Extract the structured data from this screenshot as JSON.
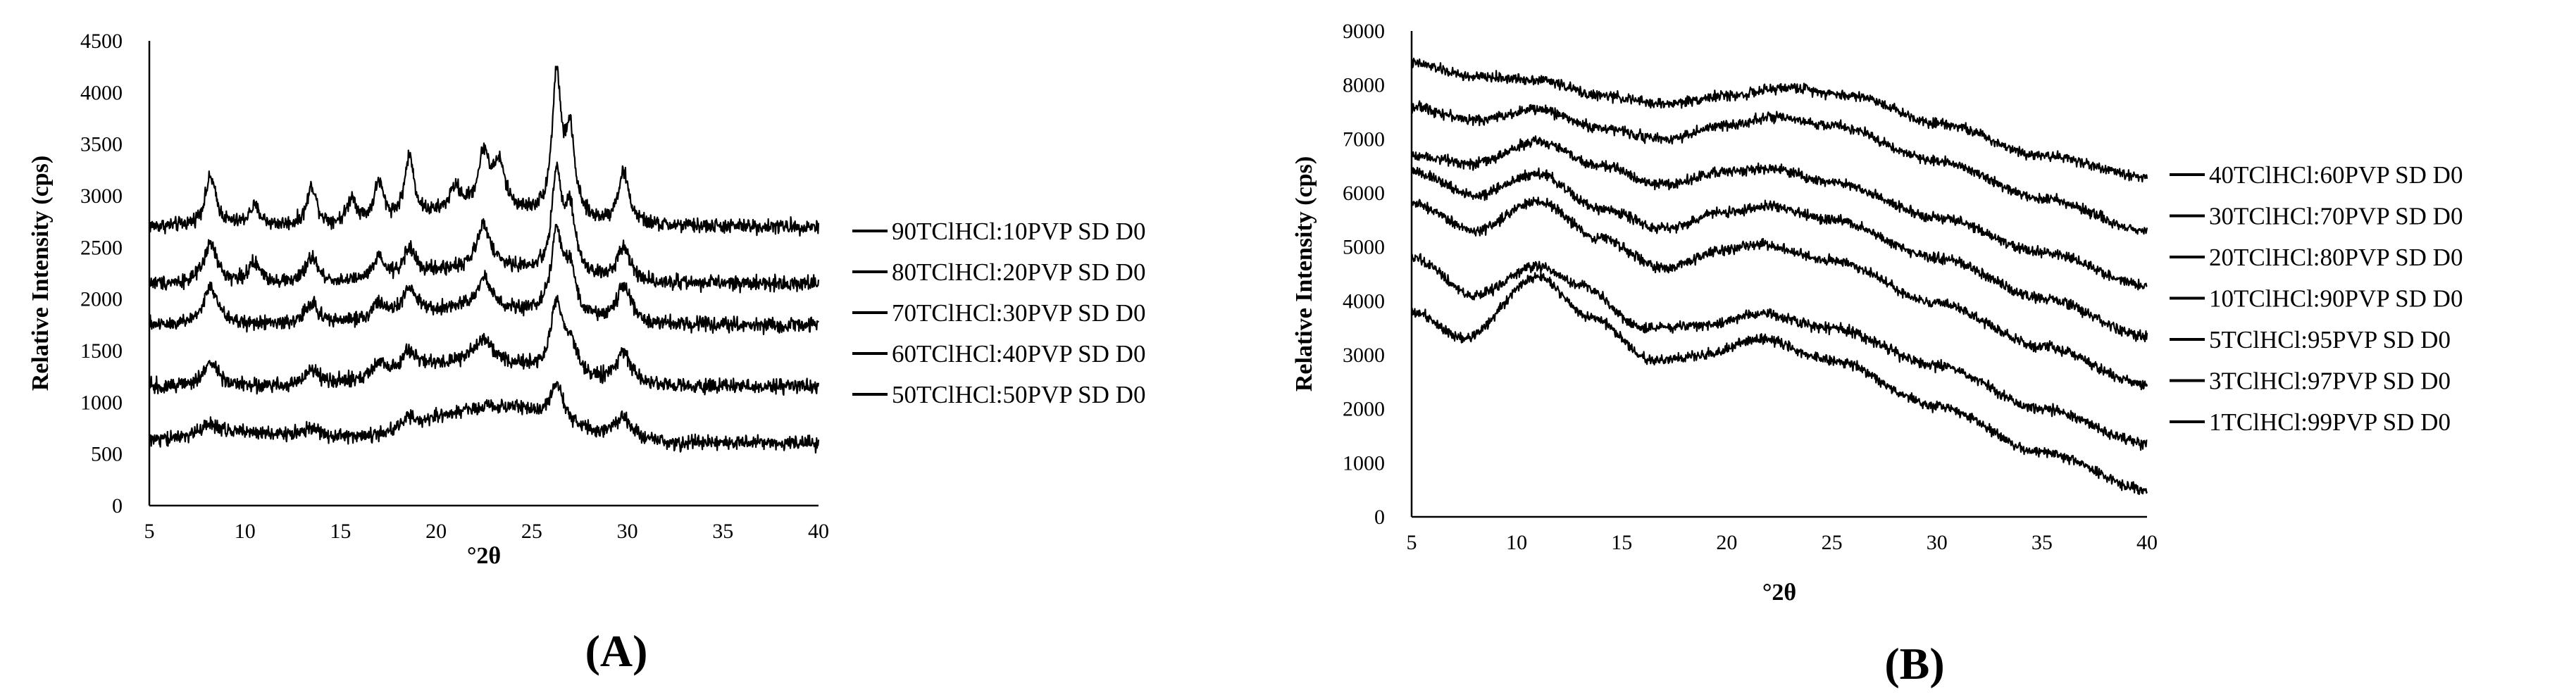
{
  "chart_data": [
    {
      "type": "line",
      "panel_label": "(A)",
      "xlabel": "°2θ",
      "ylabel": "Relative Intensity (cps)",
      "xlim": [
        5,
        40
      ],
      "ylim": [
        0,
        4500
      ],
      "x_ticks": [
        "5",
        "10",
        "15",
        "20",
        "25",
        "30",
        "35",
        "40"
      ],
      "y_ticks": [
        "0",
        "500",
        "1000",
        "1500",
        "2000",
        "2500",
        "3000",
        "3500",
        "4000",
        "4500"
      ],
      "grid": false,
      "legend_position": "right",
      "series": [
        {
          "name": "90TClHCl:10PVP SD D0",
          "baseline": 2700,
          "peaks": [
            [
              8.2,
              470,
              0.35
            ],
            [
              10.5,
              180,
              0.35
            ],
            [
              13.5,
              380,
              0.3
            ],
            [
              15.6,
              250,
              0.3
            ],
            [
              17.0,
              380,
              0.3
            ],
            [
              18.6,
              600,
              0.3
            ],
            [
              21.0,
              220,
              0.35
            ],
            [
              22.5,
              530,
              0.35
            ],
            [
              23.3,
              420,
              0.35
            ],
            [
              26.3,
              1350,
              0.28
            ],
            [
              27.0,
              800,
              0.3
            ],
            [
              29.8,
              500,
              0.35
            ]
          ],
          "halo": [
            [
              22.5,
              150,
              3.0
            ]
          ]
        },
        {
          "name": "80TClHCl:20PVP SD D0",
          "baseline": 2150,
          "peaks": [
            [
              8.2,
              380,
              0.4
            ],
            [
              10.5,
              180,
              0.4
            ],
            [
              13.5,
              250,
              0.35
            ],
            [
              17.0,
              200,
              0.35
            ],
            [
              18.6,
              270,
              0.35
            ],
            [
              22.5,
              420,
              0.4
            ],
            [
              26.3,
              950,
              0.3
            ],
            [
              27.0,
              600,
              0.35
            ],
            [
              29.8,
              350,
              0.4
            ]
          ],
          "halo": [
            [
              22.5,
              150,
              3.2
            ]
          ]
        },
        {
          "name": "70TClHCl:30PVP SD D0",
          "baseline": 1750,
          "peaks": [
            [
              8.2,
              360,
              0.45
            ],
            [
              13.5,
              200,
              0.4
            ],
            [
              17.0,
              150,
              0.4
            ],
            [
              18.6,
              250,
              0.4
            ],
            [
              22.5,
              300,
              0.45
            ],
            [
              26.3,
              800,
              0.35
            ],
            [
              27.0,
              450,
              0.35
            ],
            [
              29.8,
              350,
              0.45
            ]
          ],
          "halo": [
            [
              22.0,
              150,
              3.5
            ]
          ]
        },
        {
          "name": "60TClHCl:40PVP SD D0",
          "baseline": 1150,
          "peaks": [
            [
              8.2,
              220,
              0.5
            ],
            [
              13.5,
              150,
              0.45
            ],
            [
              17.0,
              120,
              0.45
            ],
            [
              18.6,
              180,
              0.45
            ],
            [
              22.5,
              200,
              0.5
            ],
            [
              26.3,
              650,
              0.35
            ],
            [
              27.0,
              300,
              0.4
            ],
            [
              29.8,
              300,
              0.5
            ]
          ],
          "halo": [
            [
              22.0,
              250,
              3.5
            ]
          ]
        },
        {
          "name": "50TClHCl:50PVP SD D0",
          "baseline": 600,
          "peaks": [
            [
              8.2,
              100,
              0.6
            ],
            [
              13.5,
              100,
              0.5
            ],
            [
              18.6,
              100,
              0.5
            ],
            [
              26.3,
              350,
              0.4
            ],
            [
              29.8,
              200,
              0.5
            ]
          ],
          "halo": [
            [
              23.0,
              350,
              3.5
            ],
            [
              10.0,
              100,
              3.0
            ]
          ]
        }
      ]
    },
    {
      "type": "line",
      "panel_label": "(B)",
      "xlabel": "°2θ",
      "ylabel": "Relative Intensity (cps)",
      "xlim": [
        5,
        40
      ],
      "ylim": [
        0,
        9000
      ],
      "x_ticks": [
        "5",
        "10",
        "15",
        "20",
        "25",
        "30",
        "35",
        "40"
      ],
      "y_ticks": [
        "0",
        "1000",
        "2000",
        "3000",
        "4000",
        "5000",
        "6000",
        "7000",
        "8000",
        "9000"
      ],
      "grid": false,
      "legend_position": "right",
      "series": [
        {
          "name": "40TClHCl:60PVP SD D0",
          "points": [
            [
              5,
              8400
            ],
            [
              8,
              8150
            ],
            [
              11,
              8100
            ],
            [
              14,
              7800
            ],
            [
              17,
              7650
            ],
            [
              20,
              7800
            ],
            [
              23,
              7950
            ],
            [
              26,
              7800
            ],
            [
              30,
              7300
            ],
            [
              35,
              6700
            ],
            [
              40,
              6300
            ]
          ]
        },
        {
          "name": "30TClHCl:70PVP SD D0",
          "points": [
            [
              5,
              7600
            ],
            [
              8,
              7350
            ],
            [
              11,
              7550
            ],
            [
              14,
              7200
            ],
            [
              17,
              7000
            ],
            [
              20,
              7250
            ],
            [
              22,
              7400
            ],
            [
              25,
              7250
            ],
            [
              30,
              6600
            ],
            [
              35,
              5900
            ],
            [
              40,
              5300
            ]
          ]
        },
        {
          "name": "20TClHCl:80PVP SD D0",
          "points": [
            [
              5,
              6700
            ],
            [
              8,
              6550
            ],
            [
              11,
              6950
            ],
            [
              14,
              6500
            ],
            [
              17,
              6150
            ],
            [
              20,
              6400
            ],
            [
              22,
              6450
            ],
            [
              25,
              6200
            ],
            [
              30,
              5550
            ],
            [
              35,
              4900
            ],
            [
              40,
              4300
            ]
          ]
        },
        {
          "name": "10TClHCl:90PVP SD D0",
          "points": [
            [
              5,
              6400
            ],
            [
              8,
              5950
            ],
            [
              11,
              6350
            ],
            [
              14,
              5700
            ],
            [
              17,
              5350
            ],
            [
              20,
              5650
            ],
            [
              22,
              5750
            ],
            [
              25,
              5500
            ],
            [
              30,
              4800
            ],
            [
              35,
              4050
            ],
            [
              40,
              3350
            ]
          ]
        },
        {
          "name": "5TClHCl:95PVP SD D0",
          "points": [
            [
              5,
              5800
            ],
            [
              8,
              5300
            ],
            [
              11,
              5850
            ],
            [
              14,
              5150
            ],
            [
              17,
              4600
            ],
            [
              20,
              4950
            ],
            [
              21.5,
              5050
            ],
            [
              25,
              4750
            ],
            [
              30,
              3950
            ],
            [
              35,
              3150
            ],
            [
              40,
              2450
            ]
          ]
        },
        {
          "name": "3TClHCl:97PVP SD D0",
          "points": [
            [
              5,
              4800
            ],
            [
              8,
              4100
            ],
            [
              11,
              4650
            ],
            [
              13,
              4300
            ],
            [
              16,
              3500
            ],
            [
              19,
              3550
            ],
            [
              21.5,
              3750
            ],
            [
              25,
              3500
            ],
            [
              30,
              2800
            ],
            [
              35,
              2000
            ],
            [
              40,
              1350
            ]
          ]
        },
        {
          "name": "1TClHCl:99PVP SD D0",
          "points": [
            [
              5,
              3800
            ],
            [
              7.5,
              3300
            ],
            [
              11,
              4450
            ],
            [
              13.5,
              3700
            ],
            [
              16.5,
              2900
            ],
            [
              19,
              3000
            ],
            [
              21.5,
              3300
            ],
            [
              25,
              2900
            ],
            [
              30,
              2050
            ],
            [
              35,
              1200
            ],
            [
              40,
              500
            ]
          ]
        }
      ]
    }
  ]
}
